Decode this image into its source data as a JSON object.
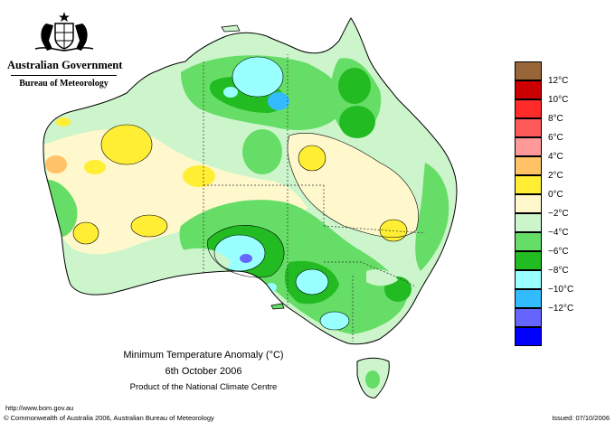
{
  "agency": {
    "government": "Australian Government",
    "department": "Bureau of Meteorology",
    "crest_icon": "commonwealth-coat-of-arms-icon"
  },
  "map": {
    "title": "Minimum Temperature Anomaly (°C)",
    "date": "6th October 2006",
    "product": "Product of the National Climate Centre"
  },
  "legend": {
    "entries": [
      {
        "label": "",
        "color": "#99663a"
      },
      {
        "label": "12°C",
        "color": "#cc0000"
      },
      {
        "label": "10°C",
        "color": "#ff2a2a"
      },
      {
        "label": "8°C",
        "color": "#ff5a5a"
      },
      {
        "label": "6°C",
        "color": "#ff9999"
      },
      {
        "label": "4°C",
        "color": "#ffc266"
      },
      {
        "label": "2°C",
        "color": "#ffee33"
      },
      {
        "label": "0°C",
        "color": "#fff8cc"
      },
      {
        "label": "−2°C",
        "color": "#ccf5cc"
      },
      {
        "label": "−4°C",
        "color": "#66dd66"
      },
      {
        "label": "−6°C",
        "color": "#22bb22"
      },
      {
        "label": "−8°C",
        "color": "#99ffff"
      },
      {
        "label": "−10°C",
        "color": "#33bbff"
      },
      {
        "label": "−12°C",
        "color": "#6666ff"
      },
      {
        "label": "",
        "color": "#0000ff"
      }
    ]
  },
  "footer": {
    "url": "http://www.bom.gov.au",
    "copyright": "© Commonwealth of Australia 2006, Australian Bureau of Meteorology",
    "issued": "Issued: 07/10/2006"
  }
}
